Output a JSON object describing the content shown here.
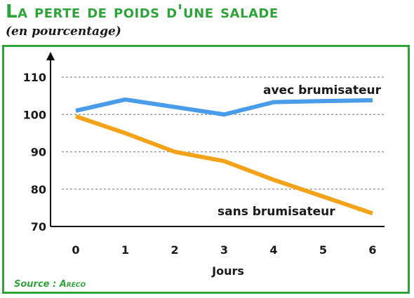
{
  "header": {
    "title": "La perte de poids d'une salade",
    "subtitle": "(en pourcentage)"
  },
  "source": {
    "prefix": "Source :",
    "org": "Areco"
  },
  "colors": {
    "accent": "#2fa33a",
    "series_1": "#4a9be8",
    "series_2": "#f2a31a",
    "grid": "#8a8a8a"
  },
  "chart_data": {
    "type": "line",
    "x": [
      0,
      1,
      2,
      3,
      4,
      5,
      6
    ],
    "x_tick_labels": [
      "0",
      "1",
      "2",
      "3",
      "4",
      "5",
      "6"
    ],
    "y_ticks": [
      70,
      80,
      90,
      100,
      110
    ],
    "xlabel": "Jours",
    "ylabel": "",
    "ylim": [
      70,
      110
    ],
    "grid": true,
    "series": [
      {
        "name": "avec brumisateur",
        "color": "#4a9be8",
        "values": [
          101,
          104,
          102,
          100,
          103.3,
          103.6,
          103.8
        ]
      },
      {
        "name": "sans brumisateur",
        "color": "#f2a31a",
        "values": [
          99.5,
          95,
          90,
          87.5,
          82.5,
          78,
          73.5
        ]
      }
    ]
  }
}
